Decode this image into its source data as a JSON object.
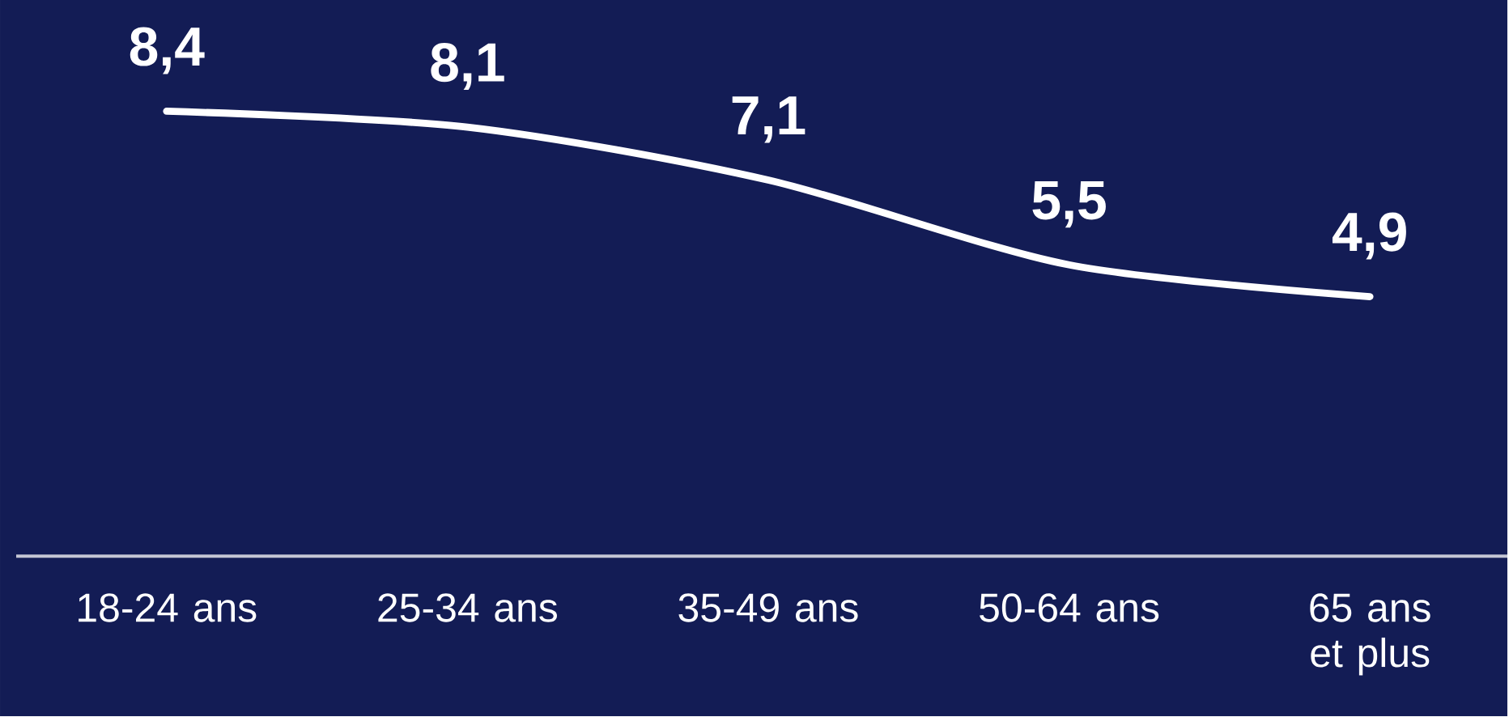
{
  "chart_data": {
    "type": "line",
    "categories": [
      "18-24 ans",
      "25-34 ans",
      "35-49 ans",
      "50-64 ans",
      "65 ans et plus"
    ],
    "values": [
      8.4,
      8.1,
      7.1,
      5.5,
      4.9
    ],
    "value_labels": [
      "8,4",
      "8,1",
      "7,1",
      "5,5",
      "4,9"
    ],
    "color": "#ffffff",
    "ylim": [
      0,
      10.5
    ],
    "tick_labels": "x",
    "grid": false,
    "marker": "none",
    "line_style": "solid"
  }
}
